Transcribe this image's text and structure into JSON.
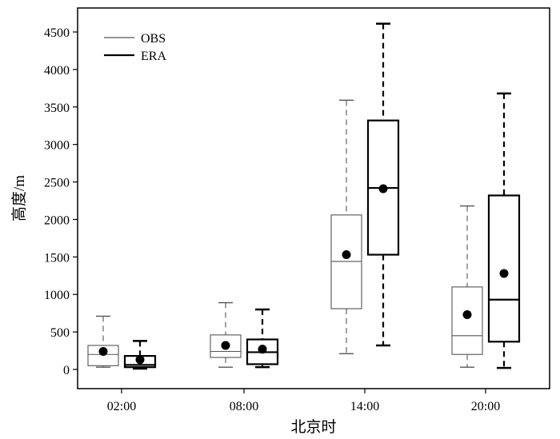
{
  "chart_data": {
    "type": "box",
    "xlabel": "北京时",
    "ylabel": "高度/m",
    "ylim": [
      -150,
      4800
    ],
    "yticks": [
      0,
      500,
      1000,
      1500,
      2000,
      2500,
      3000,
      3500,
      4000,
      4500
    ],
    "categories": [
      "02:00",
      "08:00",
      "14:00",
      "20:00"
    ],
    "grid": false,
    "legend_position": "top-left",
    "series": [
      {
        "name": "OBS",
        "color": "#555555",
        "stroke": "thin",
        "boxes": [
          {
            "min": 30,
            "q1": 50,
            "median": 200,
            "q3": 320,
            "max": 710,
            "mean": 240
          },
          {
            "min": 30,
            "q1": 160,
            "median": 240,
            "q3": 460,
            "max": 890,
            "mean": 320
          },
          {
            "min": 210,
            "q1": 810,
            "median": 1440,
            "q3": 2060,
            "max": 3590,
            "mean": 1530
          },
          {
            "min": 30,
            "q1": 200,
            "median": 450,
            "q3": 1100,
            "max": 2180,
            "mean": 730
          }
        ]
      },
      {
        "name": "ERA",
        "color": "#000000",
        "stroke": "thick",
        "boxes": [
          {
            "min": 10,
            "q1": 30,
            "median": 60,
            "q3": 180,
            "max": 380,
            "mean": 130
          },
          {
            "min": 30,
            "q1": 70,
            "median": 230,
            "q3": 400,
            "max": 800,
            "mean": 270
          },
          {
            "min": 320,
            "q1": 1530,
            "median": 2420,
            "q3": 3320,
            "max": 4610,
            "mean": 2410
          },
          {
            "min": 20,
            "q1": 370,
            "median": 930,
            "q3": 2320,
            "max": 3680,
            "mean": 1280
          }
        ]
      }
    ]
  }
}
